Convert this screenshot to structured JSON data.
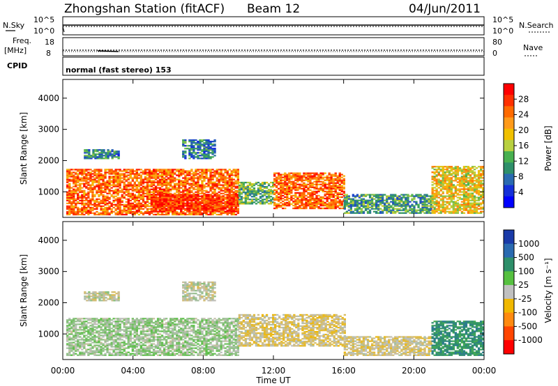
{
  "header": {
    "station": "Zhongshan Station (fitACF)",
    "beam": "Beam 12",
    "date": "04/Jun/2011"
  },
  "noise_panel": {
    "left_label": "N.Sky",
    "right_label": "N.Search",
    "left_ticks": [
      "10^5",
      "10^0"
    ],
    "right_ticks": [
      "10^5",
      "10^0"
    ]
  },
  "freq_panel": {
    "left_label_1": "Freq.",
    "left_label_2": "[MHz]",
    "right_label": "Nave",
    "left_ticks": [
      "18",
      "8"
    ],
    "right_ticks": [
      "80",
      "0"
    ]
  },
  "cpid_panel": {
    "label": "CPID",
    "text": "normal (fast stereo) 153"
  },
  "power_panel": {
    "ylabel": "Slant Range [km]",
    "cbar_label": "Power [dB]",
    "cbar_ticks": [
      "28",
      "24",
      "20",
      "16",
      "12",
      "8",
      "4"
    ],
    "cbar_colors": [
      "#ff0000",
      "#ff3000",
      "#ff6a00",
      "#ff9a1a",
      "#f0c000",
      "#b8d040",
      "#48b050",
      "#2e8f6a",
      "#2a6ab0",
      "#1530d8",
      "#0000ff"
    ]
  },
  "velocity_panel": {
    "ylabel": "Slant Range [km]",
    "cbar_label": "Velocity [m s⁻¹]",
    "cbar_ticks": [
      "1000",
      "500",
      "100",
      "25",
      "-25",
      "-100",
      "-500",
      "-1000"
    ],
    "cbar_colors": [
      "#1a3aa8",
      "#2a6ab0",
      "#2e8f6a",
      "#56c040",
      "#c0c0c0",
      "#f0b800",
      "#ff8a10",
      "#ff4500",
      "#ff0000"
    ]
  },
  "xaxis": {
    "label": "Time UT",
    "ticks": [
      "00:00",
      "04:00",
      "08:00",
      "12:00",
      "16:00",
      "20:00",
      "00:00"
    ]
  },
  "chart_data": {
    "type": "heatmap",
    "title": "Zhongshan Station (fitACF)  Beam 12  04/Jun/2011",
    "xlabel": "Time UT",
    "x_range_hours": [
      0,
      24
    ],
    "y_ticks_km": [
      1000,
      2000,
      3000,
      4000
    ],
    "ylim_km": [
      180,
      4600
    ],
    "power_scale_db": [
      0,
      30
    ],
    "velocity_scale_ms": [
      -1000,
      1000
    ],
    "power_regions": [
      {
        "t0": 0.2,
        "t1": 10.0,
        "r0": 250,
        "r1": 1700,
        "level_db": 24
      },
      {
        "t0": 5.0,
        "t1": 10.0,
        "r0": 350,
        "r1": 900,
        "level_db": 28
      },
      {
        "t0": 1.2,
        "t1": 3.2,
        "r0": 2050,
        "r1": 2350,
        "level_db": 8
      },
      {
        "t0": 6.8,
        "t1": 8.6,
        "r0": 2050,
        "r1": 2650,
        "level_db": 8
      },
      {
        "t0": 10.0,
        "t1": 12.0,
        "r0": 600,
        "r1": 1300,
        "level_db": 12
      },
      {
        "t0": 12.0,
        "t1": 16.0,
        "r0": 450,
        "r1": 1600,
        "level_db": 24
      },
      {
        "t0": 16.0,
        "t1": 21.0,
        "r0": 300,
        "r1": 900,
        "level_db": 10
      },
      {
        "t0": 21.0,
        "t1": 24.0,
        "r0": 300,
        "r1": 1800,
        "level_db": 18
      }
    ],
    "velocity_regions": [
      {
        "t0": 0.2,
        "t1": 10.0,
        "r0": 300,
        "r1": 1500,
        "velocity_ms": 100
      },
      {
        "t0": 1.2,
        "t1": 3.2,
        "r0": 2050,
        "r1": 2350,
        "velocity_ms": 0
      },
      {
        "t0": 6.8,
        "t1": 8.6,
        "r0": 2050,
        "r1": 2650,
        "velocity_ms": 0
      },
      {
        "t0": 10.0,
        "t1": 16.0,
        "r0": 600,
        "r1": 1600,
        "velocity_ms": -100
      },
      {
        "t0": 16.0,
        "t1": 21.0,
        "r0": 300,
        "r1": 900,
        "velocity_ms": -80
      },
      {
        "t0": 21.0,
        "t1": 24.0,
        "r0": 300,
        "r1": 1400,
        "velocity_ms": 500
      }
    ]
  }
}
